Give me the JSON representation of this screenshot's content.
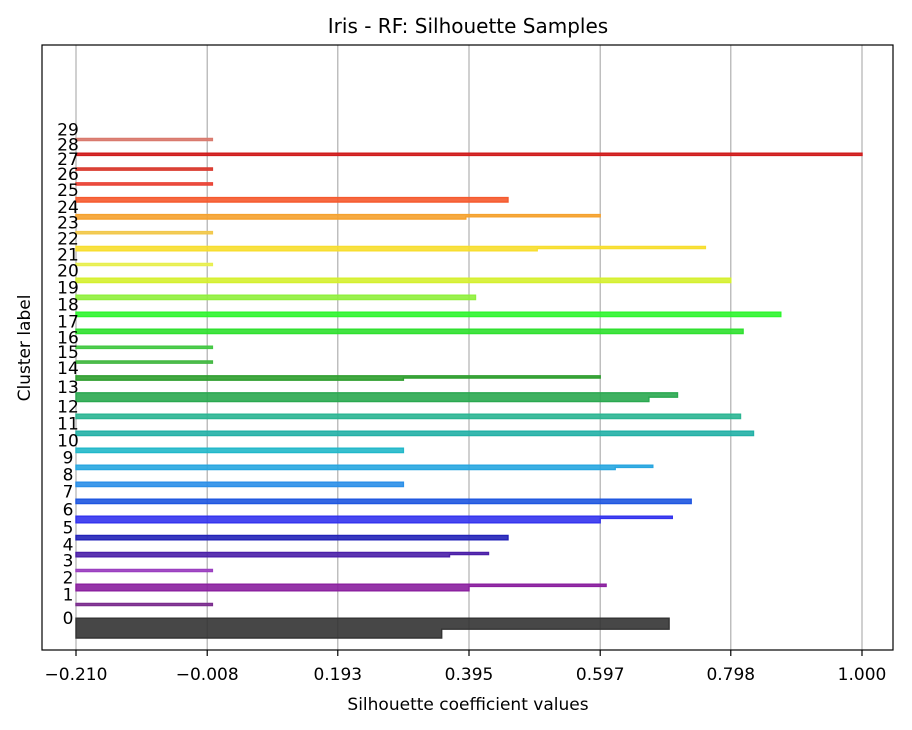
{
  "chart_data": {
    "type": "silhouette",
    "title": "Iris - RF: Silhouette Samples",
    "xlabel": "Silhouette coefficient values",
    "ylabel": "Cluster label",
    "xlim": [
      -0.21,
      1.0
    ],
    "xticks": [
      "-0.210",
      "-0.008",
      "0.193",
      "0.395",
      "0.597",
      "0.798",
      "1.000"
    ],
    "grid": "vertical",
    "clusters": [
      {
        "label": "0",
        "color": "#333333",
        "profile": [
          [
            0.703,
            5
          ],
          [
            0.353,
            4
          ]
        ]
      },
      {
        "label": "1",
        "color": "#7b2d8e",
        "profile": [
          [
            0.0,
            1
          ]
        ]
      },
      {
        "label": "2",
        "color": "#8a1f9e",
        "profile": [
          [
            0.606,
            1
          ],
          [
            0.395,
            2
          ]
        ]
      },
      {
        "label": "3",
        "color": "#9b3fc0",
        "profile": [
          [
            0.0,
            1
          ]
        ]
      },
      {
        "label": "4",
        "color": "#4b1fa8",
        "profile": [
          [
            0.425,
            1
          ],
          [
            0.365,
            1
          ]
        ]
      },
      {
        "label": "5",
        "color": "#2222b8",
        "profile": [
          [
            0.455,
            1
          ],
          [
            0.455,
            1
          ]
        ]
      },
      {
        "label": "6",
        "color": "#3333ee",
        "profile": [
          [
            0.708,
            1
          ],
          [
            0.597,
            2
          ]
        ]
      },
      {
        "label": "7",
        "color": "#1e56e0",
        "profile": [
          [
            0.737,
            1
          ],
          [
            0.737,
            1
          ]
        ]
      },
      {
        "label": "8",
        "color": "#2b8fe8",
        "profile": [
          [
            0.294,
            1
          ],
          [
            0.294,
            1
          ]
        ]
      },
      {
        "label": "9",
        "color": "#27a6e0",
        "profile": [
          [
            0.678,
            1
          ],
          [
            0.62,
            1
          ]
        ]
      },
      {
        "label": "10",
        "color": "#22b8c9",
        "profile": [
          [
            0.294,
            1
          ],
          [
            0.294,
            1
          ]
        ]
      },
      {
        "label": "11",
        "color": "#22b0a6",
        "profile": [
          [
            0.833,
            1
          ],
          [
            0.833,
            1
          ]
        ]
      },
      {
        "label": "12",
        "color": "#2bb592",
        "profile": [
          [
            0.813,
            1
          ],
          [
            0.813,
            1
          ]
        ]
      },
      {
        "label": "13",
        "color": "#2aa850",
        "profile": [
          [
            0.716,
            2
          ],
          [
            0.672,
            2
          ]
        ]
      },
      {
        "label": "14",
        "color": "#2e9e2e",
        "profile": [
          [
            0.597,
            1
          ],
          [
            0.294,
            1
          ]
        ]
      },
      {
        "label": "15",
        "color": "#43b842",
        "profile": [
          [
            0.0,
            1
          ]
        ]
      },
      {
        "label": "16",
        "color": "#43c843",
        "profile": [
          [
            0.0,
            1
          ]
        ]
      },
      {
        "label": "17",
        "color": "#2ee02e",
        "profile": [
          [
            0.817,
            1
          ],
          [
            0.817,
            1
          ]
        ]
      },
      {
        "label": "18",
        "color": "#2ef52e",
        "profile": [
          [
            0.875,
            1
          ],
          [
            0.875,
            1
          ]
        ]
      },
      {
        "label": "19",
        "color": "#8fef3c",
        "profile": [
          [
            0.405,
            1
          ],
          [
            0.405,
            1
          ]
        ]
      },
      {
        "label": "20",
        "color": "#d5f02e",
        "profile": [
          [
            0.798,
            1
          ],
          [
            0.798,
            1
          ]
        ]
      },
      {
        "label": "21",
        "color": "#e8ef4f",
        "profile": [
          [
            0.0,
            1
          ]
        ]
      },
      {
        "label": "22",
        "color": "#f7de2e",
        "profile": [
          [
            0.759,
            1
          ],
          [
            0.5,
            1
          ]
        ]
      },
      {
        "label": "23",
        "color": "#f2c84b",
        "profile": [
          [
            0.0,
            1
          ]
        ]
      },
      {
        "label": "24",
        "color": "#f5a22e",
        "profile": [
          [
            0.597,
            1
          ],
          [
            0.39,
            1
          ]
        ]
      },
      {
        "label": "25",
        "color": "#f55a2e",
        "profile": [
          [
            0.455,
            1
          ],
          [
            0.455,
            1
          ]
        ]
      },
      {
        "label": "26",
        "color": "#ea4335",
        "profile": [
          [
            0.0,
            1
          ]
        ]
      },
      {
        "label": "27",
        "color": "#d93a2e",
        "profile": [
          [
            0.0,
            1
          ]
        ]
      },
      {
        "label": "28",
        "color": "#d01c1c",
        "profile": [
          [
            1.0,
            1
          ]
        ]
      },
      {
        "label": "29",
        "color": "#d97a6e",
        "profile": [
          [
            0.0,
            1
          ]
        ]
      }
    ]
  }
}
